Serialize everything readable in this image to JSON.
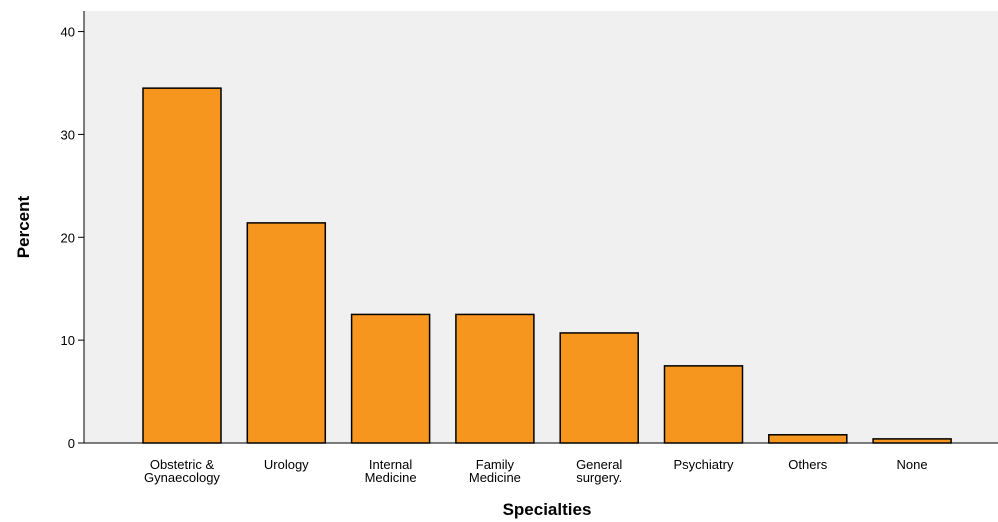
{
  "chart_data": {
    "type": "bar",
    "categories": [
      [
        "Obstetric &",
        "Gynaecology"
      ],
      [
        "Urology"
      ],
      [
        "Internal",
        "Medicine"
      ],
      [
        "Family",
        "Medicine"
      ],
      [
        "General",
        "surgery."
      ],
      [
        "Psychiatry"
      ],
      [
        "Others"
      ],
      [
        "None"
      ]
    ],
    "values": [
      34.5,
      21.4,
      12.5,
      12.5,
      10.7,
      7.5,
      0.8,
      0.4
    ],
    "xlabel": "Specialties",
    "ylabel": "Percent",
    "ylim": [
      0,
      42
    ],
    "yticks": [
      "0",
      "10",
      "20",
      "30",
      "40"
    ],
    "grid": false,
    "colors": {
      "bar_fill": "#F7961E",
      "bar_stroke": "#000000",
      "plot_bg": "#F0F0F0",
      "axis": "#000000"
    }
  }
}
